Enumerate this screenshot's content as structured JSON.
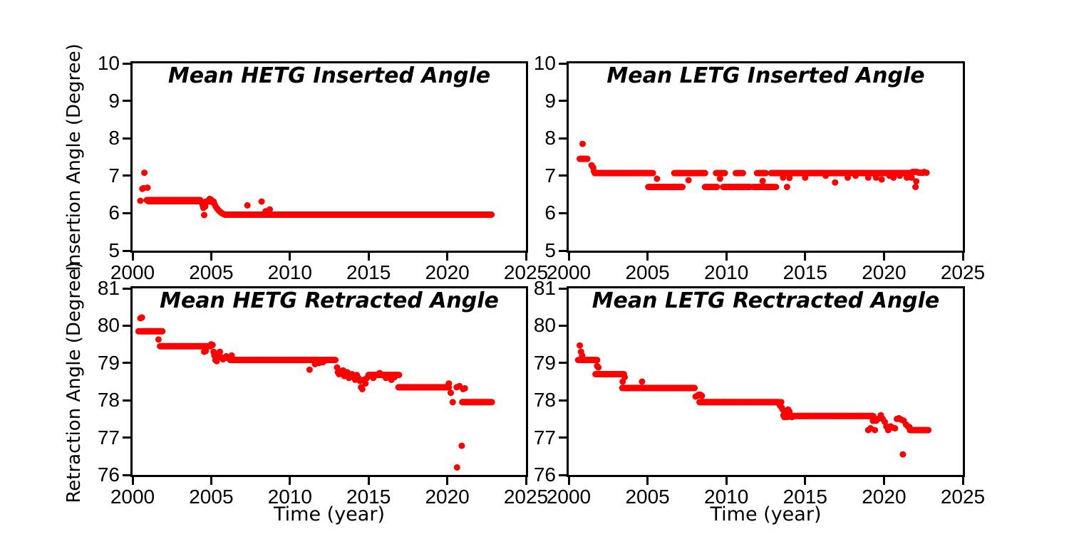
{
  "figure": {
    "background": "#ffffff",
    "axis_color": "#000000",
    "marker_color": "#ff0000",
    "marker_shape": "circle"
  },
  "chart_data": [
    {
      "id": "hetg-inserted",
      "type": "scatter",
      "title": "Mean HETG Inserted Angle",
      "xlabel": "",
      "ylabel": "Insertion Angle (Degree)",
      "xlim": [
        2000,
        2025
      ],
      "ylim": [
        5,
        10
      ],
      "xticks": [
        2000,
        2005,
        2010,
        2015,
        2020,
        2025
      ],
      "yticks": [
        5,
        6,
        7,
        8,
        9,
        10
      ],
      "grid": false,
      "legend": null,
      "bands": [
        {
          "x0": 2000.9,
          "x1": 2004.3,
          "y": 6.35,
          "step": 0.04
        },
        {
          "x0": 2001.0,
          "x1": 2004.2,
          "y": 6.32,
          "step": 0.07
        },
        {
          "x0": 2004.65,
          "x1": 2005.15,
          "y": 6.31,
          "step": 0.05
        },
        {
          "x0": 2005.85,
          "x1": 2022.8,
          "y": 5.96,
          "step": 0.04
        }
      ],
      "points": [
        [
          2000.5,
          6.33
        ],
        [
          2000.62,
          6.65
        ],
        [
          2000.7,
          6.67
        ],
        [
          2000.95,
          6.68
        ],
        [
          2000.75,
          7.08
        ],
        [
          2004.35,
          6.3
        ],
        [
          2004.45,
          6.22
        ],
        [
          2004.5,
          6.14
        ],
        [
          2004.55,
          5.95
        ],
        [
          2004.62,
          6.18
        ],
        [
          2004.9,
          6.38
        ],
        [
          2005.0,
          6.36
        ],
        [
          2005.2,
          6.25
        ],
        [
          2005.28,
          6.18
        ],
        [
          2005.38,
          6.12
        ],
        [
          2005.48,
          6.07
        ],
        [
          2005.58,
          6.03
        ],
        [
          2005.68,
          6.0
        ],
        [
          2005.78,
          5.98
        ],
        [
          2007.3,
          6.21
        ],
        [
          2008.2,
          6.31
        ],
        [
          2008.45,
          6.05
        ],
        [
          2008.6,
          6.05
        ],
        [
          2008.72,
          6.1
        ]
      ]
    },
    {
      "id": "letg-inserted",
      "type": "scatter",
      "title": "Mean LETG Inserted Angle",
      "xlabel": "",
      "ylabel": "",
      "xlim": [
        2000,
        2025
      ],
      "ylim": [
        5,
        10
      ],
      "xticks": [
        2000,
        2005,
        2010,
        2015,
        2020,
        2025
      ],
      "yticks": [
        5,
        6,
        7,
        8,
        9,
        10
      ],
      "grid": false,
      "legend": null,
      "bands": [
        {
          "x0": 2000.7,
          "x1": 2001.2,
          "y": 7.45,
          "step": 0.06
        },
        {
          "x0": 2001.65,
          "x1": 2005.35,
          "y": 7.07,
          "step": 0.045
        },
        {
          "x0": 2005.05,
          "x1": 2007.2,
          "y": 6.7,
          "step": 0.045
        },
        {
          "x0": 2006.7,
          "x1": 2008.65,
          "y": 7.07,
          "step": 0.05
        },
        {
          "x0": 2008.65,
          "x1": 2009.4,
          "y": 6.7,
          "step": 0.05
        },
        {
          "x0": 2009.35,
          "x1": 2009.9,
          "y": 7.07,
          "step": 0.05
        },
        {
          "x0": 2009.8,
          "x1": 2011.5,
          "y": 6.7,
          "step": 0.05
        },
        {
          "x0": 2010.6,
          "x1": 2011.05,
          "y": 7.07,
          "step": 0.05
        },
        {
          "x0": 2011.95,
          "x1": 2012.5,
          "y": 7.07,
          "step": 0.05
        },
        {
          "x0": 2011.7,
          "x1": 2013.05,
          "y": 6.7,
          "step": 0.05
        },
        {
          "x0": 2012.85,
          "x1": 2021.7,
          "y": 7.07,
          "step": 0.04
        },
        {
          "x0": 2021.8,
          "x1": 2022.1,
          "y": 7.1,
          "step": 0.06
        },
        {
          "x0": 2022.2,
          "x1": 2022.5,
          "y": 7.08,
          "step": 0.06
        }
      ],
      "points": [
        [
          2000.88,
          7.85
        ],
        [
          2001.45,
          7.28
        ],
        [
          2001.55,
          7.22
        ],
        [
          2001.6,
          7.12
        ],
        [
          2005.6,
          6.92
        ],
        [
          2007.6,
          6.88
        ],
        [
          2009.6,
          6.92
        ],
        [
          2012.3,
          6.86
        ],
        [
          2012.82,
          6.7
        ],
        [
          2013.15,
          6.7
        ],
        [
          2013.6,
          6.95
        ],
        [
          2013.85,
          6.7
        ],
        [
          2014.0,
          6.94
        ],
        [
          2015.0,
          6.95
        ],
        [
          2016.3,
          7.0
        ],
        [
          2016.9,
          6.82
        ],
        [
          2017.7,
          6.95
        ],
        [
          2018.2,
          7.0
        ],
        [
          2019.0,
          6.95
        ],
        [
          2019.5,
          6.95
        ],
        [
          2019.85,
          6.9
        ],
        [
          2020.35,
          7.0
        ],
        [
          2020.6,
          6.95
        ],
        [
          2021.0,
          7.0
        ],
        [
          2021.45,
          6.95
        ],
        [
          2021.75,
          6.95
        ],
        [
          2022.0,
          6.7
        ],
        [
          2022.05,
          6.85
        ],
        [
          2022.55,
          7.1
        ],
        [
          2022.7,
          7.08
        ]
      ]
    },
    {
      "id": "hetg-retracted",
      "type": "scatter",
      "title": "Mean HETG Retracted Angle",
      "xlabel": "Time (year)",
      "ylabel": "Retraction Angle (Degree)",
      "xlim": [
        2000,
        2025
      ],
      "ylim": [
        76,
        81
      ],
      "xticks": [
        2000,
        2005,
        2010,
        2015,
        2020,
        2025
      ],
      "yticks": [
        76,
        77,
        78,
        79,
        80,
        81
      ],
      "grid": false,
      "legend": null,
      "bands": [
        {
          "x0": 2000.5,
          "x1": 2001.9,
          "y": 79.85,
          "step": 0.045
        },
        {
          "x0": 2001.75,
          "x1": 2004.95,
          "y": 79.45,
          "step": 0.04
        },
        {
          "x0": 2006.2,
          "x1": 2012.9,
          "y": 79.08,
          "step": 0.035
        },
        {
          "x0": 2015.0,
          "x1": 2016.95,
          "y": 78.68,
          "step": 0.045
        },
        {
          "x0": 2016.9,
          "x1": 2020.1,
          "y": 78.35,
          "step": 0.04
        },
        {
          "x0": 2020.95,
          "x1": 2022.85,
          "y": 77.95,
          "step": 0.04
        }
      ],
      "points": [
        [
          2000.5,
          80.2
        ],
        [
          2000.6,
          80.22
        ],
        [
          2000.38,
          79.85
        ],
        [
          2001.65,
          79.63
        ],
        [
          2004.55,
          79.3
        ],
        [
          2004.65,
          79.32
        ],
        [
          2005.0,
          79.5
        ],
        [
          2005.08,
          79.48
        ],
        [
          2005.15,
          79.3
        ],
        [
          2005.2,
          79.2
        ],
        [
          2005.27,
          79.08
        ],
        [
          2005.35,
          79.05
        ],
        [
          2005.45,
          79.22
        ],
        [
          2005.55,
          79.3
        ],
        [
          2005.65,
          79.15
        ],
        [
          2005.75,
          79.1
        ],
        [
          2005.95,
          79.18
        ],
        [
          2006.1,
          79.12
        ],
        [
          2006.3,
          79.2
        ],
        [
          2011.25,
          78.82
        ],
        [
          2011.6,
          78.97
        ],
        [
          2011.85,
          79.0
        ],
        [
          2012.1,
          79.02
        ],
        [
          2013.0,
          78.88
        ],
        [
          2013.05,
          78.75
        ],
        [
          2013.12,
          78.7
        ],
        [
          2013.2,
          78.78
        ],
        [
          2013.3,
          78.72
        ],
        [
          2013.38,
          78.8
        ],
        [
          2013.45,
          78.65
        ],
        [
          2013.55,
          78.7
        ],
        [
          2013.65,
          78.75
        ],
        [
          2013.75,
          78.6
        ],
        [
          2013.85,
          78.65
        ],
        [
          2013.95,
          78.7
        ],
        [
          2014.05,
          78.62
        ],
        [
          2014.15,
          78.55
        ],
        [
          2014.25,
          78.68
        ],
        [
          2014.35,
          78.6
        ],
        [
          2014.45,
          78.52
        ],
        [
          2014.52,
          78.35
        ],
        [
          2014.6,
          78.3
        ],
        [
          2014.7,
          78.55
        ],
        [
          2014.8,
          78.45
        ],
        [
          2014.9,
          78.6
        ],
        [
          2015.3,
          78.6
        ],
        [
          2015.7,
          78.73
        ],
        [
          2016.1,
          78.6
        ],
        [
          2016.45,
          78.55
        ],
        [
          2016.65,
          78.62
        ],
        [
          2020.1,
          78.45
        ],
        [
          2020.22,
          78.2
        ],
        [
          2020.35,
          77.95
        ],
        [
          2020.6,
          78.35
        ],
        [
          2020.78,
          78.38
        ],
        [
          2021.0,
          78.3
        ],
        [
          2021.12,
          78.32
        ],
        [
          2020.62,
          76.2
        ],
        [
          2020.92,
          76.78
        ]
      ]
    },
    {
      "id": "letg-retracted",
      "type": "scatter",
      "title": "Mean LETG Rectracted Angle",
      "xlabel": "Time (year)",
      "ylabel": "",
      "xlim": [
        2000,
        2025
      ],
      "ylim": [
        76,
        81
      ],
      "xticks": [
        2000,
        2005,
        2010,
        2015,
        2020,
        2025
      ],
      "yticks": [
        76,
        77,
        78,
        79,
        80,
        81
      ],
      "grid": false,
      "legend": null,
      "bands": [
        {
          "x0": 2000.6,
          "x1": 2001.8,
          "y": 79.08,
          "step": 0.05
        },
        {
          "x0": 2001.7,
          "x1": 2003.5,
          "y": 78.7,
          "step": 0.045
        },
        {
          "x0": 2003.4,
          "x1": 2008.0,
          "y": 78.33,
          "step": 0.035
        },
        {
          "x0": 2008.3,
          "x1": 2013.3,
          "y": 77.95,
          "step": 0.035
        },
        {
          "x0": 2014.2,
          "x1": 2019.3,
          "y": 77.58,
          "step": 0.035
        },
        {
          "x0": 2021.65,
          "x1": 2022.8,
          "y": 77.2,
          "step": 0.04
        }
      ],
      "points": [
        [
          2000.7,
          79.47
        ],
        [
          2000.78,
          79.3
        ],
        [
          2000.85,
          79.2
        ],
        [
          2001.8,
          78.92
        ],
        [
          2001.88,
          78.88
        ],
        [
          2003.42,
          78.5
        ],
        [
          2003.55,
          78.62
        ],
        [
          2004.65,
          78.5
        ],
        [
          2008.05,
          78.1
        ],
        [
          2008.15,
          78.12
        ],
        [
          2008.25,
          78.15
        ],
        [
          2008.35,
          78.15
        ],
        [
          2008.45,
          78.12
        ],
        [
          2013.35,
          77.9
        ],
        [
          2013.42,
          77.85
        ],
        [
          2013.48,
          77.95
        ],
        [
          2013.52,
          77.8
        ],
        [
          2013.58,
          77.75
        ],
        [
          2013.62,
          77.6
        ],
        [
          2013.68,
          77.55
        ],
        [
          2013.72,
          77.7
        ],
        [
          2013.78,
          77.65
        ],
        [
          2013.85,
          77.55
        ],
        [
          2013.92,
          77.75
        ],
        [
          2014.0,
          77.7
        ],
        [
          2014.08,
          77.6
        ],
        [
          2014.15,
          77.55
        ],
        [
          2019.0,
          77.2
        ],
        [
          2019.15,
          77.25
        ],
        [
          2019.3,
          77.45
        ],
        [
          2019.42,
          77.2
        ],
        [
          2019.5,
          77.45
        ],
        [
          2019.62,
          77.5
        ],
        [
          2019.8,
          77.6
        ],
        [
          2019.92,
          77.5
        ],
        [
          2020.05,
          77.42
        ],
        [
          2020.15,
          77.3
        ],
        [
          2020.27,
          77.2
        ],
        [
          2020.42,
          77.3
        ],
        [
          2020.55,
          77.27
        ],
        [
          2020.7,
          77.25
        ],
        [
          2020.82,
          77.5
        ],
        [
          2020.95,
          77.52
        ],
        [
          2021.1,
          77.48
        ],
        [
          2021.25,
          77.45
        ],
        [
          2021.4,
          77.35
        ],
        [
          2021.52,
          77.3
        ],
        [
          2021.62,
          77.28
        ],
        [
          2021.2,
          76.55
        ]
      ]
    }
  ]
}
